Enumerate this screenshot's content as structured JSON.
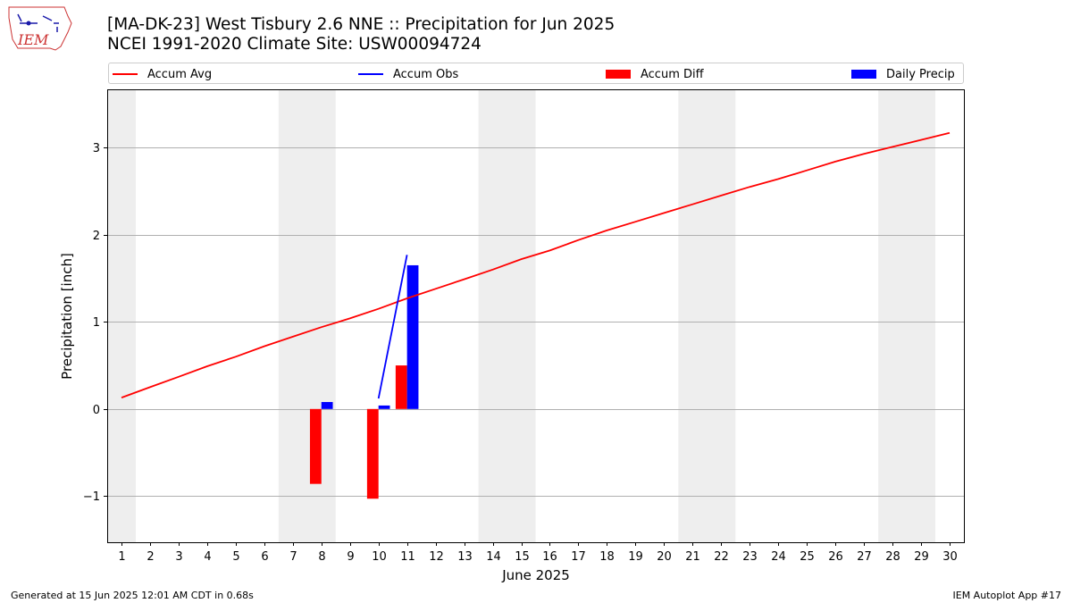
{
  "header": {
    "title_line1": "[MA-DK-23] West Tisbury 2.6 NNE :: Precipitation for Jun 2025",
    "title_line2": "NCEI 1991-2020 Climate Site: USW00094724",
    "logo_text": "IEM"
  },
  "footer": {
    "left": "Generated at 15 Jun 2025 12:01 AM CDT in 0.68s",
    "right": "IEM Autoplot App #17"
  },
  "legend": {
    "placement": "top, full width",
    "items": [
      {
        "label": "Accum Avg",
        "kind": "line",
        "color": "#ff0000"
      },
      {
        "label": "Accum Obs",
        "kind": "line",
        "color": "#0000ff"
      },
      {
        "label": "Accum Diff",
        "kind": "box",
        "color": "#ff0000"
      },
      {
        "label": "Daily Precip",
        "kind": "box",
        "color": "#0000ff"
      }
    ]
  },
  "chart_data": {
    "type": "bar",
    "xlabel": "June 2025",
    "ylabel": "Precipitation [inch]",
    "x": [
      1,
      2,
      3,
      4,
      5,
      6,
      7,
      8,
      9,
      10,
      11,
      12,
      13,
      14,
      15,
      16,
      17,
      18,
      19,
      20,
      21,
      22,
      23,
      24,
      25,
      26,
      27,
      28,
      29,
      30
    ],
    "xlim": [
      0.5,
      30.5
    ],
    "ylim": [
      -1.53,
      3.67
    ],
    "yticks": [
      -1,
      0,
      1,
      2,
      3
    ],
    "ytick_labels": [
      "−1",
      "0",
      "1",
      "2",
      "3"
    ],
    "grid": "horizontal",
    "weekend_shading": [
      [
        0.5,
        1.5
      ],
      [
        6.5,
        8.5
      ],
      [
        13.5,
        15.5
      ],
      [
        20.5,
        22.5
      ],
      [
        27.5,
        29.5
      ]
    ],
    "shading_color": "#eeeeee",
    "series": [
      {
        "name": "Accum Avg",
        "kind": "line",
        "color": "#ff0000",
        "x": [
          1,
          2,
          3,
          4,
          5,
          6,
          7,
          8,
          9,
          10,
          11,
          12,
          13,
          14,
          15,
          16,
          17,
          18,
          19,
          20,
          21,
          22,
          23,
          24,
          25,
          26,
          27,
          28,
          29,
          30
        ],
        "values": [
          0.13,
          0.25,
          0.37,
          0.49,
          0.6,
          0.72,
          0.83,
          0.94,
          1.04,
          1.15,
          1.27,
          1.38,
          1.49,
          1.6,
          1.72,
          1.82,
          1.94,
          2.05,
          2.15,
          2.25,
          2.35,
          2.45,
          2.55,
          2.64,
          2.74,
          2.84,
          2.93,
          3.01,
          3.09,
          3.17
        ]
      },
      {
        "name": "Accum Obs",
        "kind": "line",
        "color": "#0000ff",
        "x": [
          10,
          11
        ],
        "values": [
          0.12,
          1.77
        ]
      },
      {
        "name": "Accum Diff",
        "kind": "bar",
        "color": "#ff0000",
        "x": [
          8,
          10,
          11
        ],
        "values": [
          -0.86,
          -1.03,
          0.5
        ]
      },
      {
        "name": "Daily Precip",
        "kind": "bar",
        "color": "#0000ff",
        "x": [
          8,
          10,
          11
        ],
        "values": [
          0.08,
          0.04,
          1.65
        ]
      }
    ]
  }
}
